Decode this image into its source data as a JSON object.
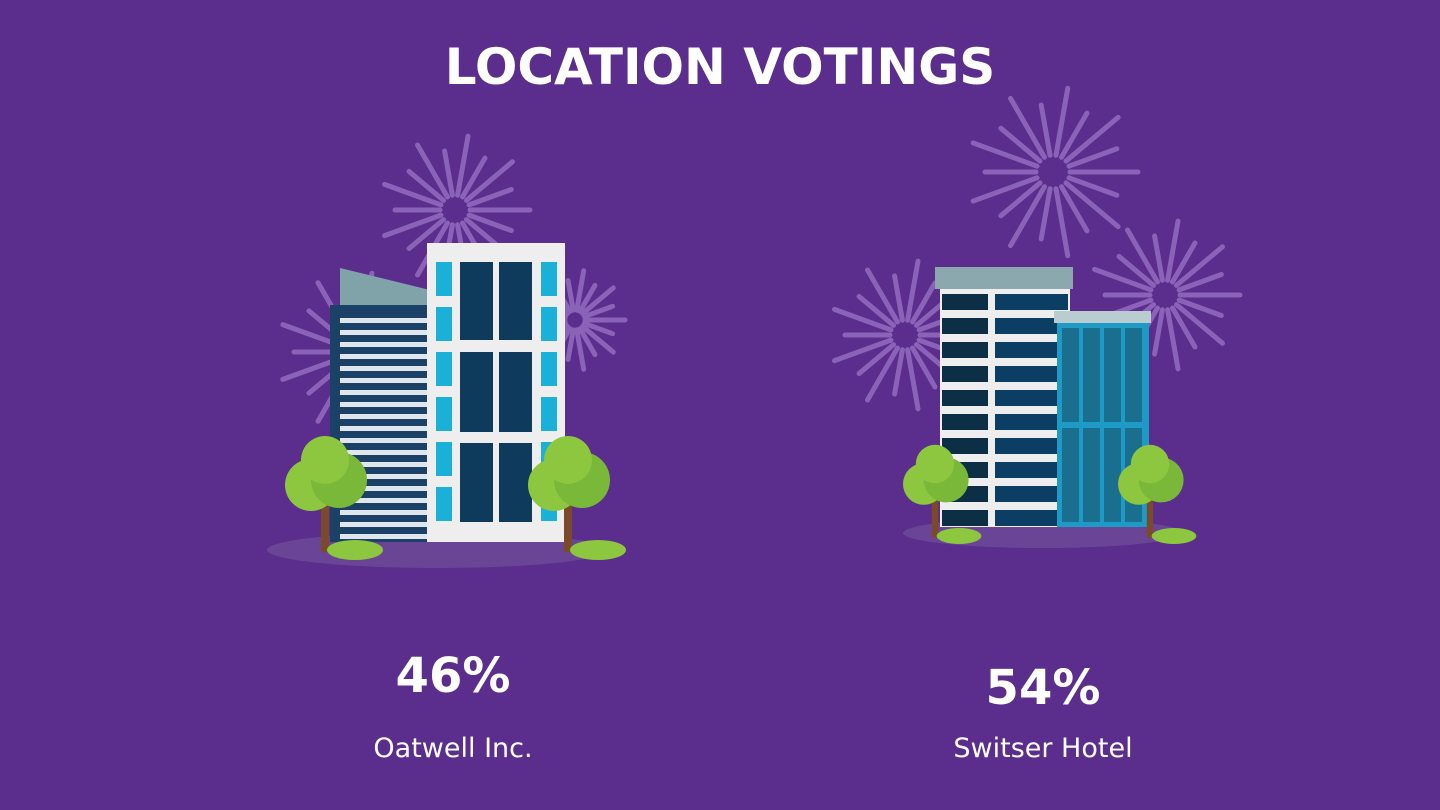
{
  "title": "LOCATION VOTINGS",
  "options": [
    {
      "percent": "46%",
      "name": "Oatwell Inc."
    },
    {
      "percent": "54%",
      "name": "Switser Hotel"
    }
  ]
}
